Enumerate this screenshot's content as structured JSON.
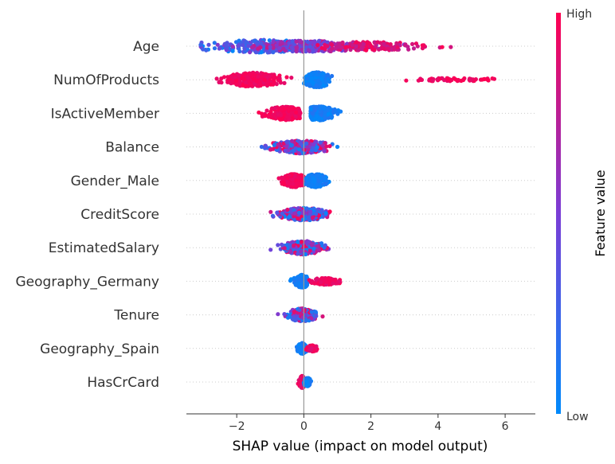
{
  "chart_data": {
    "type": "scatter",
    "subtype": "shap-beeswarm-summary",
    "title": "",
    "xlabel": "SHAP value (impact on model output)",
    "ylabel": "",
    "xlim": [
      -3.5,
      6.9
    ],
    "xticks": [
      -2,
      0,
      2,
      4,
      6
    ],
    "xtick_labels": [
      "−2",
      "0",
      "2",
      "4",
      "6"
    ],
    "grid": false,
    "zero_line": true,
    "features": [
      {
        "name": "Age",
        "blobs": [
          {
            "min": -3.1,
            "max": 4.4,
            "center": -1.1,
            "width": 1.9,
            "height": 0.38,
            "count": 240,
            "color": [
              0.0,
              0.55
            ]
          },
          {
            "min": -3.1,
            "max": 4.4,
            "center": 0.2,
            "width": 1.6,
            "height": 0.33,
            "count": 220,
            "color": [
              0.3,
              0.8
            ]
          },
          {
            "min": -3.1,
            "max": 4.4,
            "center": 2.0,
            "width": 1.5,
            "height": 0.26,
            "count": 170,
            "color": [
              0.75,
              1.0
            ]
          }
        ]
      },
      {
        "name": "NumOfProducts",
        "blobs": [
          {
            "min": -2.8,
            "max": 0.0,
            "center": -1.5,
            "width": 0.75,
            "height": 0.42,
            "count": 320,
            "color": [
              0.9,
              1.0
            ]
          },
          {
            "min": 0.0,
            "max": 1.0,
            "center": 0.4,
            "width": 0.35,
            "height": 0.45,
            "count": 300,
            "color": [
              0.0,
              0.15
            ]
          },
          {
            "min": 2.5,
            "max": 6.4,
            "center": 4.6,
            "width": 1.5,
            "height": 0.1,
            "count": 60,
            "color": [
              0.9,
              1.0
            ]
          }
        ]
      },
      {
        "name": "IsActiveMember",
        "blobs": [
          {
            "min": -1.9,
            "max": -0.1,
            "center": -0.55,
            "width": 0.55,
            "height": 0.4,
            "count": 250,
            "color": [
              0.9,
              1.0
            ]
          },
          {
            "min": 0.2,
            "max": 1.8,
            "center": 0.45,
            "width": 0.45,
            "height": 0.42,
            "count": 250,
            "color": [
              0.0,
              0.15
            ]
          }
        ]
      },
      {
        "name": "Balance",
        "blobs": [
          {
            "min": -1.7,
            "max": 1.9,
            "center": -0.1,
            "width": 0.8,
            "height": 0.38,
            "count": 360,
            "color": [
              0.0,
              1.0
            ]
          }
        ]
      },
      {
        "name": "Gender_Male",
        "blobs": [
          {
            "min": -0.9,
            "max": 0.0,
            "center": -0.3,
            "width": 0.35,
            "height": 0.4,
            "count": 210,
            "color": [
              0.9,
              1.0
            ]
          },
          {
            "min": 0.05,
            "max": 0.8,
            "center": 0.35,
            "width": 0.3,
            "height": 0.4,
            "count": 210,
            "color": [
              0.0,
              0.15
            ]
          }
        ]
      },
      {
        "name": "CreditScore",
        "blobs": [
          {
            "min": -1.7,
            "max": 2.5,
            "center": 0.0,
            "width": 0.65,
            "height": 0.38,
            "count": 320,
            "color": [
              0.0,
              1.0
            ]
          }
        ]
      },
      {
        "name": "EstimatedSalary",
        "blobs": [
          {
            "min": -1.6,
            "max": 2.3,
            "center": 0.0,
            "width": 0.6,
            "height": 0.4,
            "count": 320,
            "color": [
              0.0,
              1.0
            ]
          }
        ]
      },
      {
        "name": "Geography_Germany",
        "blobs": [
          {
            "min": -0.8,
            "max": 0.1,
            "center": -0.05,
            "width": 0.2,
            "height": 0.38,
            "count": 200,
            "color": [
              0.0,
              0.15
            ]
          },
          {
            "min": 0.1,
            "max": 1.1,
            "center": 0.65,
            "width": 0.4,
            "height": 0.2,
            "count": 150,
            "color": [
              0.85,
              1.0
            ]
          }
        ]
      },
      {
        "name": "Tenure",
        "blobs": [
          {
            "min": -1.0,
            "max": 1.1,
            "center": -0.05,
            "width": 0.4,
            "height": 0.38,
            "count": 260,
            "color": [
              0.0,
              1.0
            ]
          }
        ]
      },
      {
        "name": "Geography_Spain",
        "blobs": [
          {
            "min": -0.5,
            "max": 0.1,
            "center": -0.05,
            "width": 0.12,
            "height": 0.32,
            "count": 180,
            "color": [
              0.0,
              0.15
            ]
          },
          {
            "min": 0.0,
            "max": 0.55,
            "center": 0.25,
            "width": 0.15,
            "height": 0.18,
            "count": 100,
            "color": [
              0.85,
              1.0
            ]
          }
        ]
      },
      {
        "name": "HasCrCard",
        "blobs": [
          {
            "min": -0.3,
            "max": 0.05,
            "center": -0.05,
            "width": 0.08,
            "height": 0.36,
            "count": 150,
            "color": [
              0.85,
              1.0
            ]
          },
          {
            "min": 0.0,
            "max": 0.55,
            "center": 0.1,
            "width": 0.1,
            "height": 0.25,
            "count": 110,
            "color": [
              0.0,
              0.15
            ]
          }
        ]
      }
    ],
    "colorbar": {
      "label": "Feature value",
      "high_label": "High",
      "low_label": "Low",
      "low_color": "#008afb",
      "mid_color": "#7a3dd6",
      "high_color": "#ff0051"
    }
  }
}
